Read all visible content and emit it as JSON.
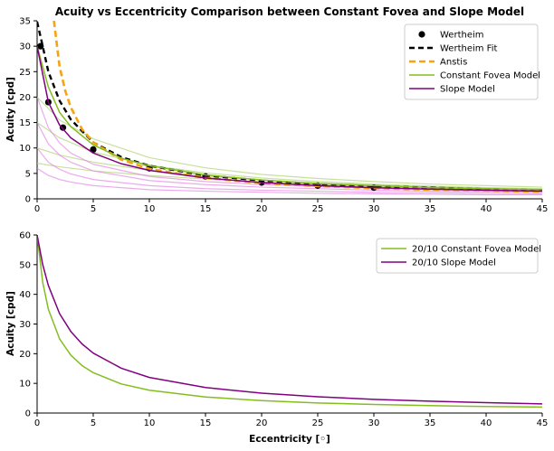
{
  "colors": {
    "wertheim": "#000000",
    "anstis": "#f5a313",
    "constant_fovea": "#84bd1f",
    "slope_model": "#800080",
    "faint_constant": "#b4d579",
    "faint_slope": "#e07ee0"
  },
  "chart_data": [
    {
      "type": "line",
      "title": "Acuity vs Eccentricity Comparison between Constant Fovea and Slope Model",
      "xlabel": "",
      "ylabel": "Acuity [cpd]",
      "xlim": [
        0,
        45
      ],
      "ylim": [
        0,
        35
      ],
      "xticks": [
        "0",
        "5",
        "10",
        "15",
        "20",
        "25",
        "30",
        "35",
        "40",
        "45"
      ],
      "yticks": [
        "0",
        "5",
        "10",
        "15",
        "20",
        "25",
        "30",
        "35"
      ],
      "legend_position": "top-right",
      "legend": [
        "Wertheim",
        "Wertheim Fit",
        "Anstis",
        "Constant Fovea Model",
        "Slope Model"
      ],
      "series": [
        {
          "name": "Wertheim",
          "style": "points",
          "x": [
            0.3,
            1,
            2.3,
            5,
            10,
            15,
            20,
            25,
            30
          ],
          "y": [
            30,
            19,
            14,
            9.7,
            6,
            4.4,
            3.2,
            2.6,
            2.2
          ]
        },
        {
          "name": "Wertheim Fit",
          "style": "dashed",
          "x": [
            0,
            0.5,
            1,
            2,
            3,
            5,
            7.5,
            10,
            15,
            20,
            25,
            30,
            35,
            40,
            45
          ],
          "y": [
            34.8,
            30,
            25,
            19.3,
            15.6,
            11.1,
            8.2,
            6.5,
            4.6,
            3.6,
            2.9,
            2.5,
            2.2,
            1.9,
            1.7
          ]
        },
        {
          "name": "Anstis",
          "style": "dashed",
          "x": [
            1.5,
            2,
            2.5,
            3,
            4,
            5,
            7.5,
            10,
            15,
            20,
            25,
            30,
            35,
            40,
            45
          ],
          "y": [
            35,
            26,
            21.3,
            18,
            13.7,
            11.1,
            7.7,
            5.9,
            4.1,
            3.1,
            2.5,
            2.1,
            1.8,
            1.6,
            1.4
          ]
        },
        {
          "name": "Constant Fovea Model",
          "style": "solid",
          "x": [
            0,
            1,
            2,
            3,
            5,
            7.5,
            10,
            15,
            20,
            25,
            30,
            35,
            40,
            45
          ],
          "y": [
            30,
            22,
            17,
            14.2,
            10.6,
            8,
            6.5,
            4.7,
            3.7,
            3,
            2.6,
            2.2,
            2,
            1.8
          ]
        },
        {
          "name": "Slope Model",
          "style": "solid",
          "x": [
            0,
            1,
            2,
            3,
            5,
            7.5,
            10,
            15,
            20,
            25,
            30,
            35,
            40,
            45
          ],
          "y": [
            30,
            19,
            14.5,
            12,
            9,
            6.9,
            5.6,
            4.1,
            3.2,
            2.6,
            2.2,
            1.9,
            1.7,
            1.5
          ]
        },
        {
          "style": "faint",
          "x": [
            0,
            2,
            5,
            10,
            15,
            20,
            25,
            30,
            35,
            40,
            45
          ],
          "y": [
            20,
            15.5,
            11.8,
            8.1,
            6.1,
            4.8,
            4,
            3.4,
            2.9,
            2.6,
            2.3
          ]
        },
        {
          "style": "faint",
          "x": [
            0,
            2,
            5,
            10,
            15,
            20,
            25,
            30,
            35,
            40,
            45
          ],
          "y": [
            15,
            12,
            9.2,
            6.6,
            5.1,
            4.1,
            3.4,
            2.9,
            2.5,
            2.2,
            2
          ]
        },
        {
          "style": "faint",
          "x": [
            0,
            2,
            5,
            10,
            15,
            20,
            25,
            30,
            35,
            40,
            45
          ],
          "y": [
            10,
            8.6,
            7.2,
            5.6,
            4.5,
            3.7,
            3.1,
            2.7,
            2.4,
            2.1,
            1.9
          ]
        },
        {
          "style": "faint",
          "x": [
            0,
            2,
            5,
            10,
            15,
            20,
            25,
            30,
            35,
            40,
            45
          ],
          "y": [
            7,
            6.3,
            5.5,
            4.6,
            3.9,
            3.3,
            2.9,
            2.5,
            2.2,
            2,
            1.8
          ]
        },
        {
          "style": "faint-slope",
          "x": [
            0,
            1,
            2,
            3,
            5,
            10,
            15,
            20,
            25,
            30,
            35,
            40,
            45
          ],
          "y": [
            20,
            14,
            11,
            9,
            6.8,
            4.4,
            3.4,
            2.8,
            2.4,
            2.1,
            1.8,
            1.6,
            1.5
          ]
        },
        {
          "style": "faint-slope",
          "x": [
            0,
            1,
            2,
            3,
            5,
            10,
            15,
            20,
            25,
            30,
            35,
            40,
            45
          ],
          "y": [
            15,
            10.8,
            8.6,
            7.2,
            5.5,
            3.6,
            2.8,
            2.3,
            2,
            1.7,
            1.5,
            1.4,
            1.3
          ]
        },
        {
          "style": "faint-slope",
          "x": [
            0,
            1,
            2,
            3,
            5,
            10,
            15,
            20,
            25,
            30,
            35,
            40,
            45
          ],
          "y": [
            10,
            7.2,
            5.8,
            4.9,
            3.8,
            2.6,
            2,
            1.7,
            1.5,
            1.3,
            1.2,
            1.1,
            1
          ]
        },
        {
          "style": "faint-slope",
          "x": [
            0,
            1,
            2,
            3,
            5,
            10,
            15,
            20,
            25,
            30,
            35,
            40,
            45
          ],
          "y": [
            6,
            4.6,
            3.8,
            3.3,
            2.6,
            1.8,
            1.5,
            1.3,
            1.1,
            1,
            0.9,
            0.8,
            0.8
          ]
        }
      ]
    },
    {
      "type": "line",
      "title": "",
      "xlabel": "Eccentricity [◦]",
      "ylabel": "Acuity [cpd]",
      "xlim": [
        0,
        45
      ],
      "ylim": [
        0,
        60
      ],
      "xticks": [
        "0",
        "5",
        "10",
        "15",
        "20",
        "25",
        "30",
        "35",
        "40",
        "45"
      ],
      "yticks": [
        "0",
        "10",
        "20",
        "30",
        "40",
        "50",
        "60"
      ],
      "legend_position": "top-right",
      "legend": [
        "20/10 Constant Fovea Model",
        "20/10 Slope Model"
      ],
      "series": [
        {
          "name": "20/10 Constant Fovea Model",
          "style": "solid",
          "x": [
            0,
            0.5,
            1,
            2,
            3,
            4,
            5,
            7.5,
            10,
            15,
            20,
            25,
            30,
            35,
            40,
            45
          ],
          "y": [
            60,
            44,
            35,
            25,
            19.5,
            16,
            13.6,
            9.8,
            7.7,
            5.4,
            4.2,
            3.4,
            2.9,
            2.5,
            2.2,
            2
          ]
        },
        {
          "name": "20/10 Slope Model",
          "style": "solid",
          "x": [
            0,
            0.5,
            1,
            2,
            3,
            4,
            5,
            7.5,
            10,
            15,
            20,
            25,
            30,
            35,
            40,
            45
          ],
          "y": [
            60,
            50,
            43,
            33.5,
            27.5,
            23.3,
            20.2,
            15.1,
            12,
            8.6,
            6.7,
            5.5,
            4.6,
            4,
            3.5,
            3.1
          ]
        }
      ]
    }
  ]
}
